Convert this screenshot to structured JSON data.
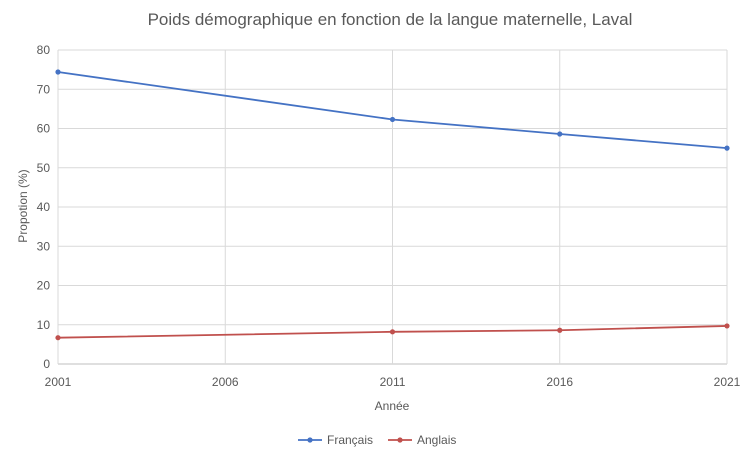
{
  "chart_data": {
    "type": "line",
    "title": "Poids démographique en fonction de la langue maternelle, Laval",
    "xlabel": "Année",
    "ylabel": "Propotion (%)",
    "x": [
      2001,
      2011,
      2016,
      2021
    ],
    "xticks": [
      "2001",
      "2006",
      "2011",
      "2016",
      "2021"
    ],
    "xlim": [
      2001,
      2021
    ],
    "ylim": [
      0,
      80
    ],
    "yticks": [
      "0",
      "10",
      "20",
      "30",
      "40",
      "50",
      "60",
      "70",
      "80"
    ],
    "grid": true,
    "legend": "bottom",
    "series": [
      {
        "name": "Français",
        "color": "#4472C4",
        "values": [
          74.4,
          62.3,
          58.6,
          55.0
        ]
      },
      {
        "name": "Anglais",
        "color": "#C0504D",
        "values": [
          6.7,
          8.2,
          8.6,
          9.7
        ]
      }
    ]
  }
}
